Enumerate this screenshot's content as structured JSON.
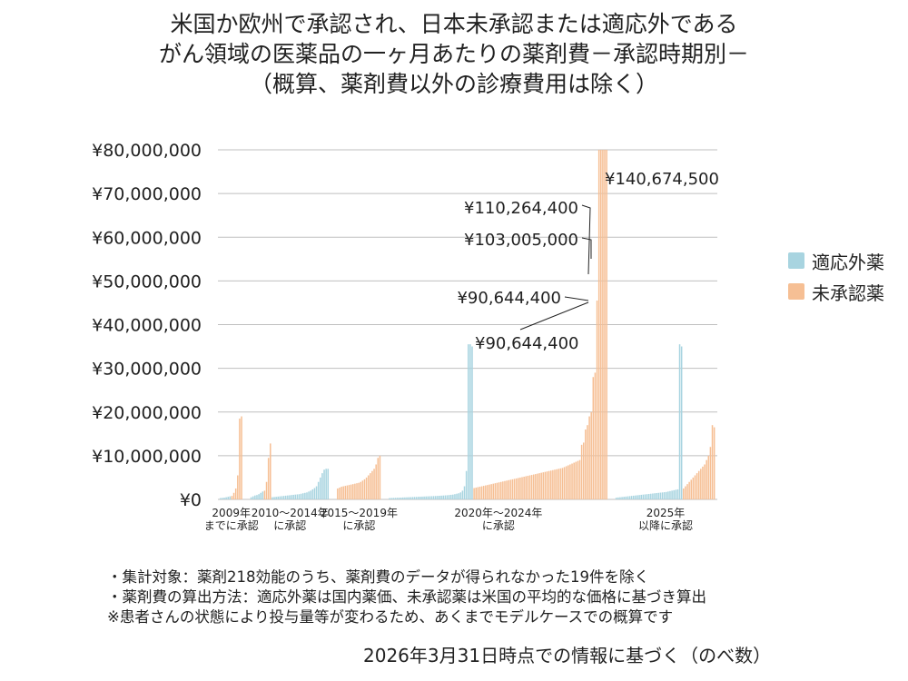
{
  "title_lines": [
    "米国か欧州で承認され、日本未承認または適応外である",
    "がん領域の医薬品の一ヶ月あたりの薬剤費－承認時期別－",
    "（概算、薬剤費以外の診療費用は除く）"
  ],
  "legend": {
    "items": [
      {
        "label": "適応外薬",
        "color": "#a8d4e0"
      },
      {
        "label": "未承認薬",
        "color": "#f6bf94"
      }
    ]
  },
  "notes": [
    "・集計対象：薬剤218効能のうち、薬剤費のデータが得られなかった19件を除く",
    "・薬剤費の算出方法：適応外薬は国内薬価、未承認薬は米国の平均的な価格に基づき算出",
    "※患者さんの状態により投与量等が変わるため、あくまでモデルケースでの概算です"
  ],
  "footer": "2026年3月31日時点での情報に基づく（のべ数）",
  "chart_data": {
    "type": "bar",
    "ylim": [
      0,
      80000000
    ],
    "yticks": [
      {
        "value": 0,
        "label": "¥0"
      },
      {
        "value": 10000000,
        "label": "¥10,000,000"
      },
      {
        "value": 20000000,
        "label": "¥20,000,000"
      },
      {
        "value": 30000000,
        "label": "¥30,000,000"
      },
      {
        "value": 40000000,
        "label": "¥40,000,000"
      },
      {
        "value": 50000000,
        "label": "¥50,000,000"
      },
      {
        "value": 60000000,
        "label": "¥60,000,000"
      },
      {
        "value": 70000000,
        "label": "¥70,000,000"
      },
      {
        "value": 80000000,
        "label": "¥80,000,000"
      }
    ],
    "grid": true,
    "colors": {
      "off_label": "#a8d4e0",
      "unapproved": "#f6bf94"
    },
    "groups": [
      {
        "label_lines": [
          "2009年",
          "までに承認"
        ],
        "off_label": [
          300000,
          350000,
          400000,
          500000,
          600000,
          700000
        ],
        "unapproved": [
          800000,
          1500000,
          2500000,
          5500000,
          18500000,
          19000000
        ]
      },
      {
        "label_lines": [
          "2010～2014年",
          "に承認"
        ],
        "off_label": [
          500000,
          700000,
          900000,
          1000000,
          1200000,
          1500000,
          1800000
        ],
        "unapproved": [
          2000000,
          4000000,
          9500000,
          12800000
        ],
        "off_label_2": [
          500000,
          550000,
          600000,
          650000,
          700000,
          750000,
          800000,
          850000,
          900000,
          950000,
          1000000,
          1050000,
          1100000,
          1150000,
          1200000,
          1300000,
          1400000,
          1500000,
          1600000,
          1800000,
          2000000,
          2300000,
          2600000,
          3000000,
          4000000,
          5000000,
          6000000,
          6800000,
          7000000,
          7000000
        ]
      },
      {
        "label_lines": [
          "2015～2019年",
          "に承認"
        ],
        "unapproved": [
          2500000,
          2700000,
          2900000,
          3000000,
          3100000,
          3200000,
          3300000,
          3400000,
          3500000,
          3600000,
          3700000,
          3800000,
          4000000,
          4300000,
          4600000,
          5000000,
          5500000,
          6000000,
          6500000,
          7000000,
          8000000,
          9500000,
          10000000
        ]
      },
      {
        "label_lines": [
          "2020年～2024年",
          "に承認"
        ],
        "off_label": [
          300000,
          320000,
          340000,
          360000,
          380000,
          400000,
          420000,
          440000,
          460000,
          480000,
          500000,
          520000,
          540000,
          560000,
          580000,
          600000,
          620000,
          640000,
          660000,
          680000,
          700000,
          720000,
          740000,
          760000,
          780000,
          800000,
          830000,
          860000,
          890000,
          920000,
          950000,
          1000000,
          1050000,
          1100000,
          1200000,
          1300000,
          1400000,
          1600000,
          2000000,
          3000000,
          6500000,
          35500000,
          35500000,
          35000000
        ],
        "unapproved": [
          2600000,
          2700000,
          2800000,
          2900000,
          3000000,
          3100000,
          3200000,
          3300000,
          3400000,
          3500000,
          3600000,
          3700000,
          3800000,
          3900000,
          4000000,
          4100000,
          4200000,
          4300000,
          4400000,
          4500000,
          4600000,
          4700000,
          4800000,
          4900000,
          5000000,
          5100000,
          5200000,
          5300000,
          5400000,
          5500000,
          5600000,
          5700000,
          5800000,
          5900000,
          6000000,
          6100000,
          6200000,
          6300000,
          6400000,
          6500000,
          6600000,
          6700000,
          6800000,
          6900000,
          7000000,
          7100000,
          7200000,
          7400000,
          7600000,
          7800000,
          8000000,
          8200000,
          8400000,
          8600000,
          8800000,
          9000000,
          12500000,
          13000000,
          16000000,
          17000000,
          19000000,
          20000000,
          28000000,
          29000000,
          45500000,
          80000000,
          80000000,
          80000000,
          80000000,
          80000000
        ]
      },
      {
        "label_lines": [
          "2025年",
          "以降に承認"
        ],
        "off_label": [
          400000,
          450000,
          500000,
          550000,
          600000,
          650000,
          700000,
          750000,
          800000,
          850000,
          900000,
          950000,
          1000000,
          1050000,
          1100000,
          1150000,
          1200000,
          1250000,
          1300000,
          1350000,
          1400000,
          1450000,
          1500000,
          1550000,
          1600000,
          1650000,
          1700000,
          1800000,
          1900000,
          2000000,
          2100000,
          2200000,
          2300000,
          35500000,
          35000000
        ],
        "unapproved": [
          2500000,
          3000000,
          3500000,
          4000000,
          4500000,
          5000000,
          5500000,
          6000000,
          6500000,
          7000000,
          7500000,
          8000000,
          9000000,
          10000000,
          12000000,
          17000000,
          16500000
        ]
      }
    ],
    "annotations": [
      {
        "label": "¥140,674,500"
      },
      {
        "label": "¥110,264,400"
      },
      {
        "label": "¥103,005,000"
      },
      {
        "label": "¥90,644,400"
      },
      {
        "label": "¥90,644,400"
      }
    ]
  }
}
